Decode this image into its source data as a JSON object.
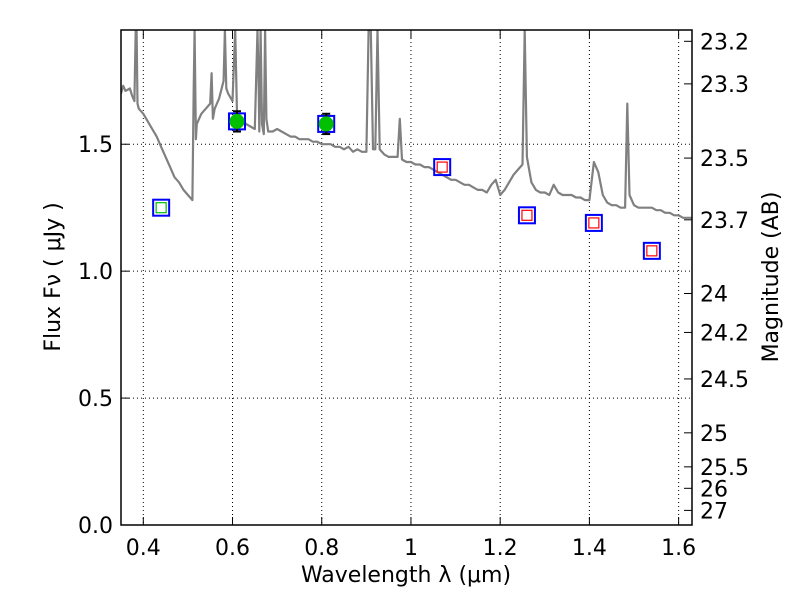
{
  "chart_data": {
    "type": "scatter",
    "title": "",
    "xlabel": "Wavelength  λ (μm)",
    "ylabel": "Flux  Fν  ( μJy )",
    "ylabel_right": "Magnitude (AB)",
    "xlim": [
      0.35,
      1.63
    ],
    "ylim": [
      0.0,
      1.95
    ],
    "grid": true,
    "grid_style": "dotted",
    "x_ticks": [
      0.4,
      0.6,
      0.8,
      1.0,
      1.2,
      1.4,
      1.6
    ],
    "x_tick_labels": [
      "0.4",
      "0.6",
      "0.8",
      "1",
      "1.2",
      "1.4",
      "1.6"
    ],
    "y_ticks": [
      0.0,
      0.5,
      1.0,
      1.5
    ],
    "y_tick_labels": [
      "0.0",
      "0.5",
      "1.0",
      "1.5"
    ],
    "right_ticks": [
      {
        "mag": 23.2,
        "label": "23.2"
      },
      {
        "mag": 23.3,
        "label": "23.3"
      },
      {
        "mag": 23.5,
        "label": "23.5"
      },
      {
        "mag": 23.7,
        "label": "23.7"
      },
      {
        "mag": 24.0,
        "label": "24"
      },
      {
        "mag": 24.2,
        "label": "24.2"
      },
      {
        "mag": 24.5,
        "label": "24.5"
      },
      {
        "mag": 25.0,
        "label": "25"
      },
      {
        "mag": 25.5,
        "label": "25.5"
      },
      {
        "mag": 26.0,
        "label": "26"
      },
      {
        "mag": 27.0,
        "label": "27"
      }
    ],
    "colors": {
      "model": "#808080",
      "square_edge": "#0000ff",
      "inner_green": "#00c000",
      "inner_red": "#ff0000",
      "circle_fill": "#00c000",
      "errorbar": "#000000"
    },
    "series": [
      {
        "kind": "model_spectrum",
        "points": [
          [
            0.35,
            1.7
          ],
          [
            0.355,
            1.73
          ],
          [
            0.36,
            1.71
          ],
          [
            0.37,
            1.72
          ],
          [
            0.375,
            1.69
          ],
          [
            0.38,
            1.67
          ],
          [
            0.383,
            1.95
          ],
          [
            0.385,
            1.95
          ],
          [
            0.387,
            1.66
          ],
          [
            0.39,
            1.64
          ],
          [
            0.4,
            1.62
          ],
          [
            0.41,
            1.59
          ],
          [
            0.42,
            1.56
          ],
          [
            0.43,
            1.53
          ],
          [
            0.44,
            1.49
          ],
          [
            0.45,
            1.45
          ],
          [
            0.46,
            1.41
          ],
          [
            0.47,
            1.37
          ],
          [
            0.48,
            1.35
          ],
          [
            0.49,
            1.32
          ],
          [
            0.5,
            1.3
          ],
          [
            0.505,
            1.29
          ],
          [
            0.51,
            1.28
          ],
          [
            0.513,
            1.72
          ],
          [
            0.515,
            1.95
          ],
          [
            0.518,
            1.52
          ],
          [
            0.52,
            1.58
          ],
          [
            0.53,
            1.62
          ],
          [
            0.54,
            1.64
          ],
          [
            0.55,
            1.66
          ],
          [
            0.553,
            1.78
          ],
          [
            0.556,
            1.6
          ],
          [
            0.56,
            1.64
          ],
          [
            0.57,
            1.68
          ],
          [
            0.58,
            1.75
          ],
          [
            0.583,
            1.95
          ],
          [
            0.586,
            1.72
          ],
          [
            0.59,
            1.7
          ],
          [
            0.6,
            1.67
          ],
          [
            0.606,
            1.95
          ],
          [
            0.61,
            1.62
          ],
          [
            0.62,
            1.6
          ],
          [
            0.63,
            1.58
          ],
          [
            0.64,
            1.57
          ],
          [
            0.65,
            1.56
          ],
          [
            0.656,
            1.95
          ],
          [
            0.659,
            1.7
          ],
          [
            0.66,
            1.55
          ],
          [
            0.663,
            1.95
          ],
          [
            0.666,
            1.58
          ],
          [
            0.67,
            1.54
          ],
          [
            0.673,
            1.95
          ],
          [
            0.676,
            1.6
          ],
          [
            0.68,
            1.55
          ],
          [
            0.69,
            1.55
          ],
          [
            0.7,
            1.56
          ],
          [
            0.71,
            1.55
          ],
          [
            0.72,
            1.54
          ],
          [
            0.73,
            1.53
          ],
          [
            0.74,
            1.53
          ],
          [
            0.75,
            1.52
          ],
          [
            0.76,
            1.52
          ],
          [
            0.77,
            1.52
          ],
          [
            0.78,
            1.51
          ],
          [
            0.79,
            1.51
          ],
          [
            0.8,
            1.5
          ],
          [
            0.81,
            1.5
          ],
          [
            0.82,
            1.5
          ],
          [
            0.83,
            1.49
          ],
          [
            0.84,
            1.49
          ],
          [
            0.85,
            1.48
          ],
          [
            0.86,
            1.49
          ],
          [
            0.87,
            1.47
          ],
          [
            0.88,
            1.48
          ],
          [
            0.89,
            1.47
          ],
          [
            0.9,
            1.47
          ],
          [
            0.905,
            1.95
          ],
          [
            0.91,
            1.95
          ],
          [
            0.915,
            1.48
          ],
          [
            0.92,
            1.48
          ],
          [
            0.925,
            1.95
          ],
          [
            0.93,
            1.48
          ],
          [
            0.94,
            1.46
          ],
          [
            0.95,
            1.45
          ],
          [
            0.96,
            1.45
          ],
          [
            0.97,
            1.45
          ],
          [
            0.975,
            1.6
          ],
          [
            0.98,
            1.44
          ],
          [
            0.99,
            1.43
          ],
          [
            1.0,
            1.43
          ],
          [
            1.01,
            1.42
          ],
          [
            1.02,
            1.42
          ],
          [
            1.03,
            1.41
          ],
          [
            1.04,
            1.41
          ],
          [
            1.05,
            1.4
          ],
          [
            1.06,
            1.39
          ],
          [
            1.07,
            1.38
          ],
          [
            1.08,
            1.37
          ],
          [
            1.09,
            1.36
          ],
          [
            1.1,
            1.36
          ],
          [
            1.11,
            1.35
          ],
          [
            1.12,
            1.34
          ],
          [
            1.13,
            1.34
          ],
          [
            1.14,
            1.33
          ],
          [
            1.15,
            1.32
          ],
          [
            1.16,
            1.32
          ],
          [
            1.17,
            1.31
          ],
          [
            1.18,
            1.34
          ],
          [
            1.19,
            1.36
          ],
          [
            1.2,
            1.3
          ],
          [
            1.21,
            1.32
          ],
          [
            1.22,
            1.35
          ],
          [
            1.23,
            1.38
          ],
          [
            1.24,
            1.4
          ],
          [
            1.25,
            1.42
          ],
          [
            1.255,
            1.95
          ],
          [
            1.26,
            1.45
          ],
          [
            1.27,
            1.35
          ],
          [
            1.28,
            1.32
          ],
          [
            1.29,
            1.31
          ],
          [
            1.3,
            1.31
          ],
          [
            1.31,
            1.3
          ],
          [
            1.32,
            1.34
          ],
          [
            1.33,
            1.31
          ],
          [
            1.34,
            1.3
          ],
          [
            1.35,
            1.3
          ],
          [
            1.36,
            1.3
          ],
          [
            1.37,
            1.29
          ],
          [
            1.38,
            1.29
          ],
          [
            1.39,
            1.28
          ],
          [
            1.4,
            1.28
          ],
          [
            1.41,
            1.43
          ],
          [
            1.42,
            1.39
          ],
          [
            1.43,
            1.3
          ],
          [
            1.44,
            1.27
          ],
          [
            1.45,
            1.26
          ],
          [
            1.46,
            1.26
          ],
          [
            1.47,
            1.25
          ],
          [
            1.48,
            1.25
          ],
          [
            1.485,
            1.66
          ],
          [
            1.49,
            1.3
          ],
          [
            1.5,
            1.26
          ],
          [
            1.51,
            1.25
          ],
          [
            1.52,
            1.25
          ],
          [
            1.53,
            1.25
          ],
          [
            1.54,
            1.25
          ],
          [
            1.55,
            1.24
          ],
          [
            1.56,
            1.24
          ],
          [
            1.57,
            1.23
          ],
          [
            1.58,
            1.23
          ],
          [
            1.59,
            1.22
          ],
          [
            1.6,
            1.22
          ],
          [
            1.61,
            1.21
          ],
          [
            1.62,
            1.21
          ],
          [
            1.63,
            1.21
          ]
        ]
      },
      {
        "kind": "observed",
        "points": [
          {
            "x": 0.44,
            "y": 1.25,
            "yerr": 0.0,
            "marker": "square-green"
          },
          {
            "x": 0.61,
            "y": 1.59,
            "yerr": 0.04,
            "marker": "circle-green"
          },
          {
            "x": 0.81,
            "y": 1.58,
            "yerr": 0.04,
            "marker": "circle-green"
          },
          {
            "x": 1.07,
            "y": 1.41,
            "yerr": 0.0,
            "marker": "square-red"
          },
          {
            "x": 1.26,
            "y": 1.22,
            "yerr": 0.0,
            "marker": "square-red"
          },
          {
            "x": 1.41,
            "y": 1.19,
            "yerr": 0.0,
            "marker": "square-red"
          },
          {
            "x": 1.54,
            "y": 1.08,
            "yerr": 0.0,
            "marker": "square-red"
          }
        ]
      }
    ]
  }
}
